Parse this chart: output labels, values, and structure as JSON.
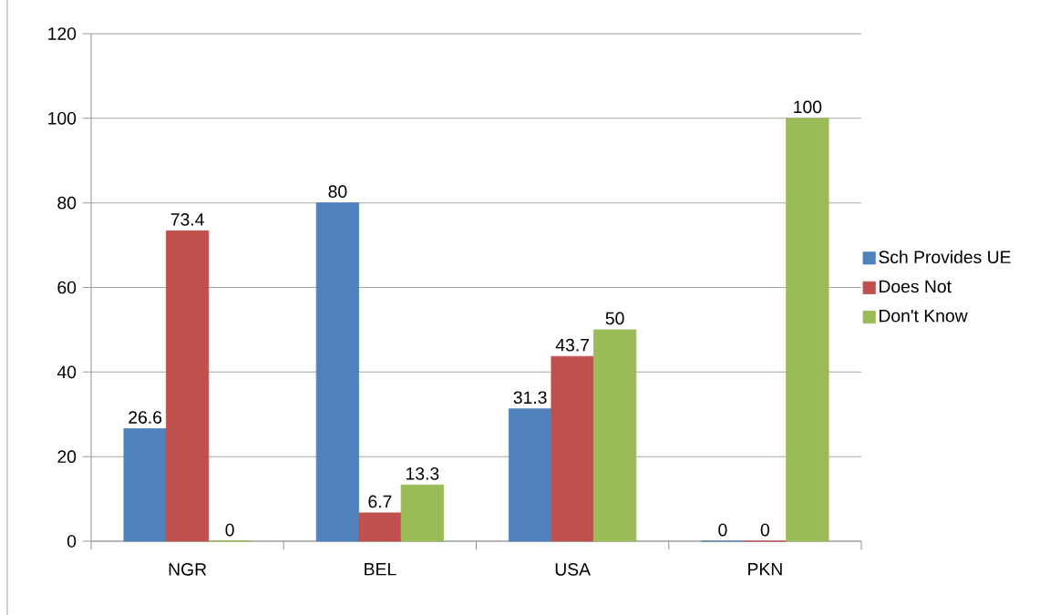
{
  "chart_data": {
    "type": "bar",
    "categories": [
      "NGR",
      "BEL",
      "USA",
      "PKN"
    ],
    "series": [
      {
        "name": "Sch Provides UE",
        "color": "#4f81bd",
        "values": [
          26.6,
          80,
          31.3,
          0
        ]
      },
      {
        "name": "Does Not",
        "color": "#c0504d",
        "values": [
          73.4,
          6.7,
          43.7,
          0
        ]
      },
      {
        "name": "Don't Know",
        "color": "#9bbb59",
        "values": [
          0,
          13.3,
          50,
          100
        ]
      }
    ],
    "ylim": [
      0,
      120
    ],
    "yticks": [
      0,
      20,
      40,
      60,
      80,
      100,
      120
    ],
    "grid": "y",
    "legend": "right",
    "data_labels": true
  }
}
